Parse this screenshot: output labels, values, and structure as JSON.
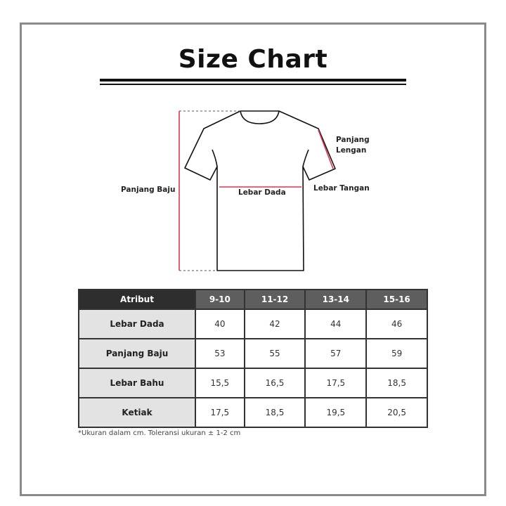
{
  "title": "Size Chart",
  "diagram": {
    "labels": {
      "panjang_baju": "Panjang Baju",
      "lebar_dada": "Lebar Dada",
      "panjang_lengan_1": "Panjang",
      "panjang_lengan_2": "Lengan",
      "lebar_tangan": "Lebar Tangan"
    },
    "colors": {
      "measure_line": "#e0334f",
      "outline": "#111111"
    }
  },
  "table": {
    "headers": [
      "Atribut",
      "9-10",
      "11-12",
      "13-14",
      "15-16"
    ],
    "rows": [
      {
        "attr": "Lebar Dada",
        "values": [
          "40",
          "42",
          "44",
          "46"
        ]
      },
      {
        "attr": "Panjang Baju",
        "values": [
          "53",
          "55",
          "57",
          "59"
        ]
      },
      {
        "attr": "Lebar Bahu",
        "values": [
          "15,5",
          "16,5",
          "17,5",
          "18,5"
        ]
      },
      {
        "attr": "Ketiak",
        "values": [
          "17,5",
          "18,5",
          "19,5",
          "20,5"
        ]
      }
    ]
  },
  "note": "*Ukuran dalam cm. Toleransi ukuran ± 1-2 cm"
}
